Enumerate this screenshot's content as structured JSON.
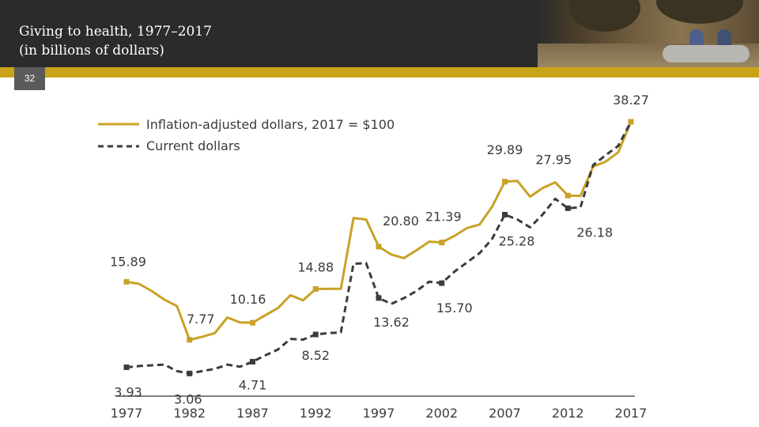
{
  "header": {
    "title_line1": "Giving to health, 1977–2017",
    "title_line2": "(in billions of dollars)",
    "slide_number": "32"
  },
  "colors": {
    "header_bg": "#2b2b2b",
    "accent_gold": "#c9a318",
    "series_gold": "#c9a227",
    "series_dark": "#3c3c3c",
    "axis_text": "#3b3b3b"
  },
  "chart_data": {
    "type": "line",
    "title": "Giving to health, 1977–2017 (in billions of dollars)",
    "xlabel": "",
    "ylabel": "",
    "ylim": [
      0,
      40
    ],
    "grid": false,
    "legend_position": "top-left",
    "x_ticks": [
      "1977",
      "1982",
      "1987",
      "1992",
      "1997",
      "2002",
      "2007",
      "2012",
      "2017"
    ],
    "series": [
      {
        "name": "Inflation-adjusted dollars, 2017 = $100",
        "style": "solid",
        "x": [
          1977,
          1978,
          1979,
          1980,
          1981,
          1982,
          1983,
          1984,
          1985,
          1986,
          1987,
          1988,
          1989,
          1990,
          1991,
          1992,
          1993,
          1994,
          1995,
          1996,
          1997,
          1998,
          1999,
          2000,
          2001,
          2002,
          2003,
          2004,
          2005,
          2006,
          2007,
          2008,
          2009,
          2010,
          2011,
          2012,
          2013,
          2014,
          2015,
          2016,
          2017
        ],
        "values": [
          15.89,
          15.6,
          14.6,
          13.4,
          12.5,
          7.77,
          8.2,
          8.7,
          10.9,
          10.2,
          10.16,
          11.2,
          12.2,
          14.0,
          13.3,
          14.88,
          14.9,
          14.9,
          24.8,
          24.6,
          20.8,
          19.7,
          19.2,
          20.3,
          21.5,
          21.39,
          22.3,
          23.4,
          23.9,
          26.4,
          29.89,
          30.0,
          27.8,
          29.0,
          29.8,
          27.95,
          27.9,
          32.0,
          32.7,
          34.0,
          38.27
        ],
        "labels": [
          {
            "x": 1977,
            "text": "15.89"
          },
          {
            "x": 1982,
            "text": "7.77"
          },
          {
            "x": 1987,
            "text": "10.16"
          },
          {
            "x": 1992,
            "text": "14.88"
          },
          {
            "x": 1997,
            "text": "20.80"
          },
          {
            "x": 2002,
            "text": "21.39"
          },
          {
            "x": 2007,
            "text": "29.89"
          },
          {
            "x": 2012,
            "text": "27.95"
          },
          {
            "x": 2017,
            "text": "38.27"
          }
        ]
      },
      {
        "name": "Current dollars",
        "style": "dashed",
        "x": [
          1977,
          1978,
          1979,
          1980,
          1981,
          1982,
          1983,
          1984,
          1985,
          1986,
          1987,
          1988,
          1989,
          1990,
          1991,
          1992,
          1993,
          1994,
          1995,
          1996,
          1997,
          1998,
          1999,
          2000,
          2001,
          2002,
          2003,
          2004,
          2005,
          2006,
          2007,
          2008,
          2009,
          2010,
          2011,
          2012,
          2013,
          2014,
          2015,
          2016,
          2017
        ],
        "values": [
          3.93,
          4.1,
          4.2,
          4.3,
          3.4,
          3.06,
          3.4,
          3.7,
          4.3,
          4.0,
          4.71,
          5.6,
          6.4,
          7.9,
          7.8,
          8.52,
          8.7,
          8.8,
          18.4,
          18.5,
          13.62,
          12.8,
          13.6,
          14.6,
          15.9,
          15.7,
          17.3,
          18.6,
          19.9,
          21.9,
          25.28,
          24.6,
          23.5,
          25.3,
          27.5,
          26.18,
          26.3,
          32.2,
          33.6,
          34.9,
          38.27
        ],
        "labels": [
          {
            "x": 1977,
            "text": "3.93"
          },
          {
            "x": 1982,
            "text": "3.06"
          },
          {
            "x": 1987,
            "text": "4.71"
          },
          {
            "x": 1992,
            "text": "8.52"
          },
          {
            "x": 1997,
            "text": "13.62"
          },
          {
            "x": 2002,
            "text": "15.70"
          },
          {
            "x": 2007,
            "text": "25.28"
          },
          {
            "x": 2012,
            "text": "26.18"
          }
        ]
      }
    ]
  }
}
